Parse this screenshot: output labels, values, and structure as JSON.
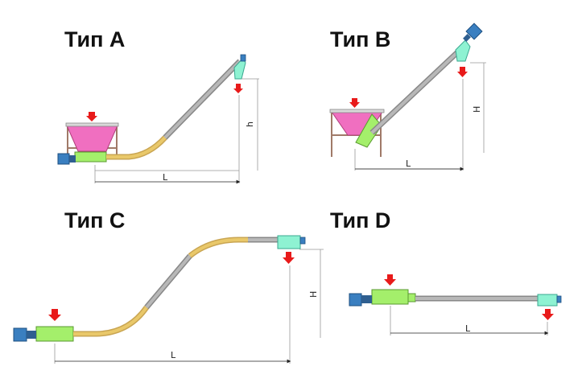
{
  "types": {
    "a": {
      "title": "Тип A",
      "dim_length": "L",
      "dim_height": "h"
    },
    "b": {
      "title": "Тип B",
      "dim_length": "L",
      "dim_height": "H"
    },
    "c": {
      "title": "Тип C",
      "dim_length": "L",
      "dim_height": "H"
    },
    "d": {
      "title": "Тип D",
      "dim_length": "L"
    }
  },
  "colors": {
    "hopper": "#f06fc0",
    "feed_section": "#a4ef6b",
    "tube": "#a9a9a9",
    "flexible_tube": "#e9c86a",
    "discharge": "#8ef2d2",
    "motor": "#3a7fc0",
    "arrow": "#e81a1a",
    "dimension_line": "#888888"
  }
}
